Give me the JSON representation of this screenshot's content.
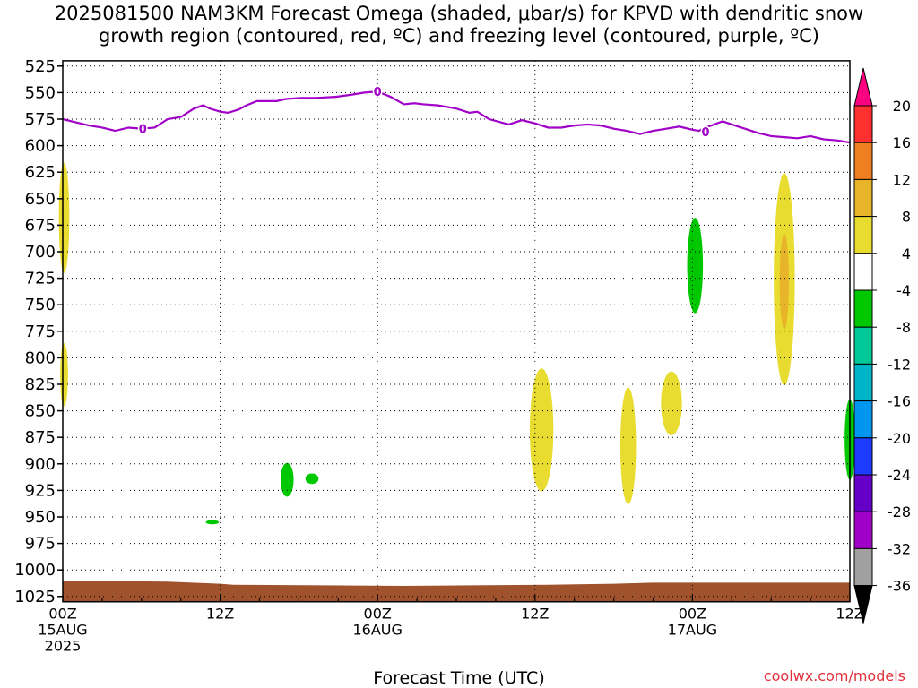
{
  "title": {
    "line1": "2025081500 NAM3KM Forecast Omega (shaded, μbar/s) for KPVD with dendritic snow",
    "line2": "growth region (contoured, red, ºC) and freezing level (contoured, purple, ºC)"
  },
  "credit": "coolwx.com/models",
  "chart_data": {
    "type": "time-height-contour",
    "title": "2025081500 NAM3KM Forecast Omega (shaded, μbar/s) for KPVD with dendritic snow growth region (contoured, red, ºC) and freezing level (contoured, purple, ºC)",
    "xlabel": "Forecast Time (UTC)",
    "x_ticks": [
      {
        "hour": 0,
        "label": "00Z",
        "sub1": "15AUG",
        "sub2": "2025"
      },
      {
        "hour": 12,
        "label": "12Z",
        "sub1": "",
        "sub2": ""
      },
      {
        "hour": 24,
        "label": "00Z",
        "sub1": "16AUG",
        "sub2": ""
      },
      {
        "hour": 36,
        "label": "12Z",
        "sub1": "",
        "sub2": ""
      },
      {
        "hour": 48,
        "label": "00Z",
        "sub1": "17AUG",
        "sub2": ""
      },
      {
        "hour": 60,
        "label": "12Z",
        "sub1": "",
        "sub2": ""
      }
    ],
    "xlim_hours": [
      0,
      60
    ],
    "y_ticks": [
      525,
      550,
      575,
      600,
      625,
      650,
      675,
      700,
      725,
      750,
      775,
      800,
      825,
      850,
      875,
      900,
      925,
      950,
      975,
      1000,
      1025
    ],
    "ylim_mb": [
      520,
      1030
    ],
    "grid": true,
    "freezing_level": {
      "color": "#a000c8",
      "label": "0",
      "label_positions": [
        {
          "hour": 6.1,
          "pressure": 584
        },
        {
          "hour": 24.0,
          "pressure": 549
        },
        {
          "hour": 49.0,
          "pressure": 587
        }
      ],
      "points": [
        [
          0,
          575
        ],
        [
          1,
          578
        ],
        [
          2,
          581
        ],
        [
          3,
          583
        ],
        [
          4,
          586
        ],
        [
          5,
          583
        ],
        [
          6,
          584
        ],
        [
          7,
          583
        ],
        [
          8,
          575
        ],
        [
          9,
          573
        ],
        [
          10,
          565
        ],
        [
          10.7,
          562
        ],
        [
          11.2,
          565
        ],
        [
          12,
          568
        ],
        [
          12.6,
          569
        ],
        [
          13.4,
          566
        ],
        [
          14,
          562
        ],
        [
          14.8,
          558
        ],
        [
          15.6,
          558
        ],
        [
          16.3,
          558
        ],
        [
          17,
          556
        ],
        [
          18.2,
          555
        ],
        [
          19.3,
          555
        ],
        [
          20.8,
          554
        ],
        [
          22,
          552
        ],
        [
          23,
          550
        ],
        [
          24,
          549
        ],
        [
          25,
          554
        ],
        [
          26,
          561
        ],
        [
          26.8,
          560
        ],
        [
          27.5,
          561
        ],
        [
          28.6,
          562
        ],
        [
          30,
          565
        ],
        [
          31,
          569
        ],
        [
          31.6,
          568
        ],
        [
          32.5,
          575
        ],
        [
          34,
          580
        ],
        [
          35,
          576
        ],
        [
          36,
          579
        ],
        [
          37,
          583
        ],
        [
          38,
          583
        ],
        [
          39,
          581
        ],
        [
          40,
          580
        ],
        [
          41,
          581
        ],
        [
          42,
          584
        ],
        [
          43,
          586
        ],
        [
          44,
          589
        ],
        [
          45,
          586
        ],
        [
          46,
          584
        ],
        [
          47,
          582
        ],
        [
          48,
          585
        ],
        [
          48.5,
          586
        ],
        [
          49,
          583
        ],
        [
          50.3,
          577
        ],
        [
          51,
          580
        ],
        [
          53,
          588
        ],
        [
          54,
          591
        ],
        [
          55,
          592
        ],
        [
          56,
          593
        ],
        [
          57,
          591
        ],
        [
          58,
          594
        ],
        [
          59,
          595
        ],
        [
          60,
          597
        ]
      ]
    },
    "terrain": {
      "color": "#a0522d",
      "surface_pressure": [
        [
          0,
          1010
        ],
        [
          8,
          1011
        ],
        [
          12,
          1013
        ],
        [
          13,
          1014
        ],
        [
          26,
          1015
        ],
        [
          37,
          1014
        ],
        [
          42,
          1013
        ],
        [
          45,
          1012
        ],
        [
          60,
          1012
        ]
      ]
    },
    "omega_regions": [
      {
        "level": "4 to 8",
        "hour": 0.1,
        "center_mb": 668,
        "half_width_hours": 0.4,
        "half_height_mb": 52
      },
      {
        "level": "4 to 8",
        "hour": 0.1,
        "center_mb": 816,
        "half_width_hours": 0.3,
        "half_height_mb": 30
      },
      {
        "level": "4 to 8",
        "hour": 36.5,
        "center_mb": 868,
        "half_width_hours": 0.9,
        "half_height_mb": 58
      },
      {
        "level": "4 to 8",
        "hour": 43.1,
        "center_mb": 883,
        "half_width_hours": 0.6,
        "half_height_mb": 55
      },
      {
        "level": "4 to 8",
        "hour": 46.4,
        "center_mb": 843,
        "half_width_hours": 0.8,
        "half_height_mb": 30
      },
      {
        "level": "4 to 8",
        "hour": 55.0,
        "center_mb": 726,
        "half_width_hours": 0.8,
        "half_height_mb": 100
      },
      {
        "level": "8 to 12",
        "hour": 55.0,
        "center_mb": 728,
        "half_width_hours": 0.35,
        "half_height_mb": 45
      },
      {
        "level": "-8 to -4",
        "hour": 48.2,
        "center_mb": 713,
        "half_width_hours": 0.6,
        "half_height_mb": 45
      },
      {
        "level": "-8 to -4",
        "hour": 17.1,
        "center_mb": 915,
        "half_width_hours": 0.5,
        "half_height_mb": 16
      },
      {
        "level": "-8 to -4",
        "hour": 19.0,
        "center_mb": 914,
        "half_width_hours": 0.5,
        "half_height_mb": 5
      },
      {
        "level": "-8 to -4",
        "hour": 11.4,
        "center_mb": 955,
        "half_width_hours": 0.5,
        "half_height_mb": 2
      },
      {
        "level": "-8 to -4",
        "hour": 60.0,
        "center_mb": 877,
        "half_width_hours": 0.4,
        "half_height_mb": 38
      }
    ],
    "colorbar": {
      "labels": [
        "20",
        "16",
        "12",
        "8",
        "4",
        "-4",
        "-8",
        "-12",
        "-16",
        "-20",
        "-24",
        "-28",
        "-32",
        "-36"
      ],
      "colors": [
        "#ff0080",
        "#ff3030",
        "#ef7f21",
        "#e8b42a",
        "#e8dc30",
        "#ffffff",
        "#00c800",
        "#00c896",
        "#00b4c8",
        "#0096f0",
        "#1e3cff",
        "#6400c8",
        "#a000c8",
        "#a0a0a0",
        "#000000"
      ]
    }
  }
}
